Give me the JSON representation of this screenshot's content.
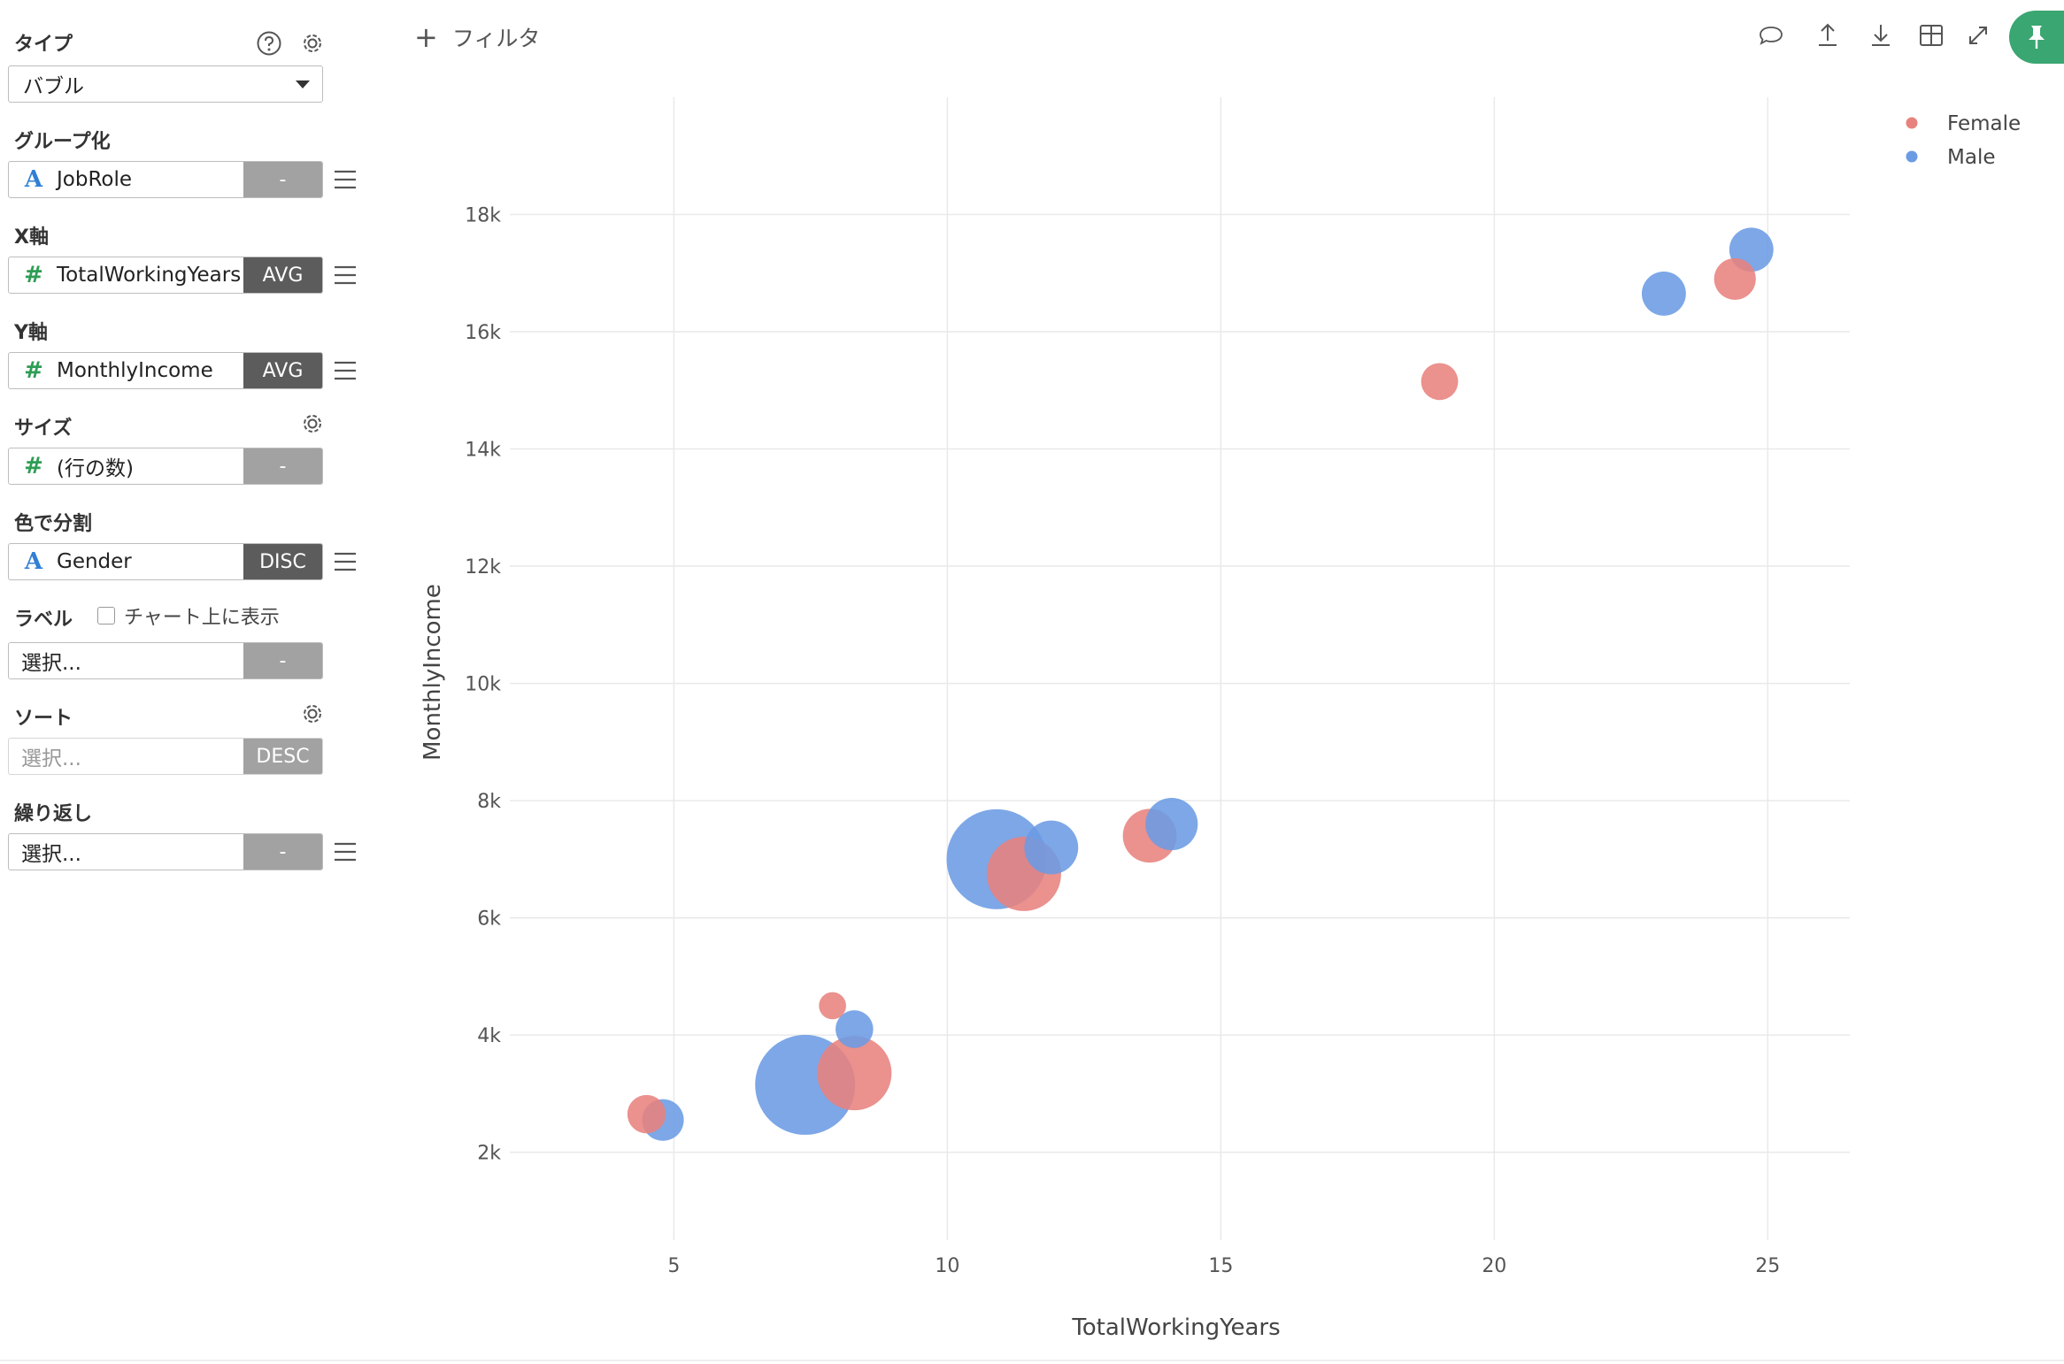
{
  "sidebar": {
    "type": {
      "label": "タイプ",
      "value": "バブル"
    },
    "group": {
      "label": "グループ化",
      "field": "JobRole",
      "agg": "-"
    },
    "x_axis": {
      "label": "X軸",
      "field": "TotalWorkingYears",
      "agg": "AVG"
    },
    "y_axis": {
      "label": "Y軸",
      "field": "MonthlyIncome",
      "agg": "AVG"
    },
    "size": {
      "label": "サイズ",
      "field": "(行の数)",
      "agg": "-"
    },
    "color": {
      "label": "色で分割",
      "field": "Gender",
      "agg": "DISC"
    },
    "label_sec": {
      "label": "ラベル",
      "checkbox_label": "チャート上に表示",
      "placeholder": "選択...",
      "agg": "-"
    },
    "sort": {
      "label": "ソート",
      "placeholder": "選択...",
      "agg": "DESC"
    },
    "repeat": {
      "label": "繰り返し",
      "placeholder": "選択...",
      "agg": "-"
    }
  },
  "toolbar": {
    "filter_label": "フィルタ",
    "icons": [
      "comment-icon",
      "upload-icon",
      "download-icon",
      "table-icon",
      "expand-icon",
      "pin-icon"
    ]
  },
  "colors": {
    "female": "#e8827e",
    "male": "#6b9be4",
    "accent": "#3aa672"
  },
  "chart_data": {
    "type": "scatter",
    "subtype": "bubble",
    "xlabel": "TotalWorkingYears",
    "ylabel": "MonthlyIncome",
    "xlim": [
      2.0,
      26.5
    ],
    "ylim": [
      500,
      20000
    ],
    "x_ticks": [
      5,
      10,
      15,
      20,
      25
    ],
    "y_ticks": [
      2000,
      4000,
      6000,
      8000,
      10000,
      12000,
      14000,
      16000,
      18000
    ],
    "y_tick_labels": [
      "2k",
      "4k",
      "6k",
      "8k",
      "10k",
      "12k",
      "14k",
      "16k",
      "18k"
    ],
    "grid": true,
    "legend_position": "top-right",
    "series": [
      {
        "name": "Female",
        "color": "#e8827e",
        "points": [
          {
            "x": 4.5,
            "y": 2650,
            "count": 28
          },
          {
            "x": 7.9,
            "y": 4500,
            "count": 14
          },
          {
            "x": 8.3,
            "y": 3350,
            "count": 105
          },
          {
            "x": 11.4,
            "y": 6750,
            "count": 105
          },
          {
            "x": 13.7,
            "y": 7400,
            "count": 55
          },
          {
            "x": 19.0,
            "y": 15150,
            "count": 26
          },
          {
            "x": 24.4,
            "y": 16900,
            "count": 33
          }
        ]
      },
      {
        "name": "Male",
        "color": "#6b9be4",
        "points": [
          {
            "x": 4.8,
            "y": 2550,
            "count": 33
          },
          {
            "x": 8.3,
            "y": 4100,
            "count": 27
          },
          {
            "x": 7.4,
            "y": 3150,
            "count": 190
          },
          {
            "x": 10.9,
            "y": 7000,
            "count": 190
          },
          {
            "x": 11.9,
            "y": 7200,
            "count": 55
          },
          {
            "x": 14.1,
            "y": 7600,
            "count": 52
          },
          {
            "x": 23.1,
            "y": 16650,
            "count": 37
          },
          {
            "x": 24.7,
            "y": 17400,
            "count": 37
          }
        ]
      }
    ]
  }
}
